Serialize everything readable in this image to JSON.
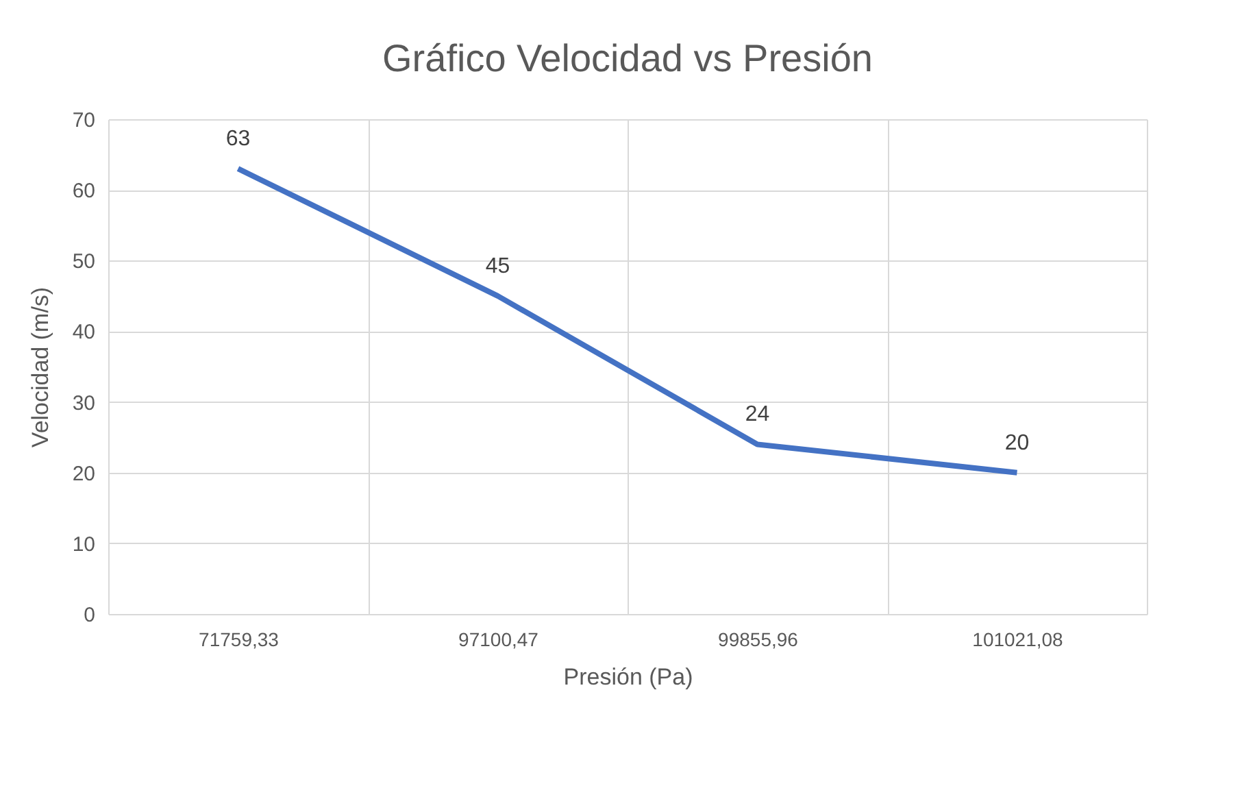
{
  "chart_data": {
    "type": "line",
    "title": "Gráfico Velocidad vs Presión",
    "xlabel": "Presión (Pa)",
    "ylabel": "Velocidad (m/s)",
    "categories": [
      "71759,33",
      "97100,47",
      "99855,96",
      "101021,08"
    ],
    "values": [
      63,
      45,
      24,
      20
    ],
    "color": "#4472c4",
    "ylim": [
      0,
      70
    ],
    "yticks": [
      0,
      10,
      20,
      30,
      40,
      50,
      60,
      70
    ],
    "grid": true,
    "data_labels": true
  }
}
